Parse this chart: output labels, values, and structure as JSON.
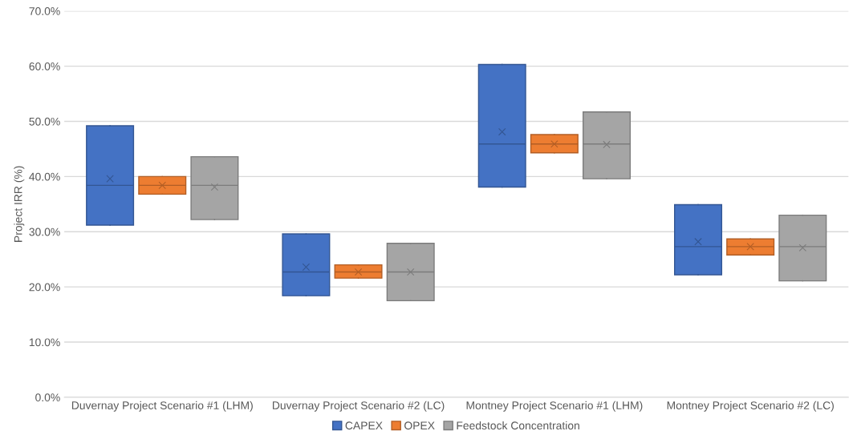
{
  "chart_data": {
    "type": "box",
    "ylabel": "Project IRR (%)",
    "categories": [
      "Duvernay Project Scenario #1 (LHM)",
      "Duvernay Project Scenario #2 (LC)",
      "Montney Project Scenario #1 (LHM)",
      "Montney Project Scenario #2 (LC)"
    ],
    "series": [
      {
        "name": "CAPEX",
        "color": "#4472c4",
        "boxes": [
          {
            "low": 31.2,
            "q1": 31.2,
            "median": 38.4,
            "q3": 49.2,
            "high": 49.2,
            "mean": 39.6
          },
          {
            "low": 18.4,
            "q1": 18.4,
            "median": 22.7,
            "q3": 29.6,
            "high": 29.6,
            "mean": 23.6
          },
          {
            "low": 38.1,
            "q1": 38.1,
            "median": 45.9,
            "q3": 60.3,
            "high": 60.3,
            "mean": 48.1
          },
          {
            "low": 22.2,
            "q1": 22.2,
            "median": 27.3,
            "q3": 34.9,
            "high": 34.9,
            "mean": 28.2
          }
        ]
      },
      {
        "name": "OPEX",
        "color": "#ed7d31",
        "boxes": [
          {
            "low": 36.8,
            "q1": 36.8,
            "median": 38.4,
            "q3": 40.0,
            "high": 40.0,
            "mean": 38.4
          },
          {
            "low": 21.6,
            "q1": 21.6,
            "median": 22.7,
            "q3": 24.0,
            "high": 24.0,
            "mean": 22.7
          },
          {
            "low": 44.3,
            "q1": 44.3,
            "median": 45.9,
            "q3": 47.6,
            "high": 47.6,
            "mean": 45.9
          },
          {
            "low": 25.8,
            "q1": 25.8,
            "median": 27.3,
            "q3": 28.7,
            "high": 28.7,
            "mean": 27.3
          }
        ]
      },
      {
        "name": "Feedstock Concentration",
        "color": "#a5a5a5",
        "boxes": [
          {
            "low": 32.2,
            "q1": 32.2,
            "median": 38.4,
            "q3": 43.6,
            "high": 43.6,
            "mean": 38.1
          },
          {
            "low": 17.5,
            "q1": 17.5,
            "median": 22.7,
            "q3": 27.9,
            "high": 27.9,
            "mean": 22.7
          },
          {
            "low": 39.6,
            "q1": 39.6,
            "median": 45.9,
            "q3": 51.7,
            "high": 51.7,
            "mean": 45.8
          },
          {
            "low": 21.1,
            "q1": 21.1,
            "median": 27.3,
            "q3": 33.0,
            "high": 33.0,
            "mean": 27.1
          }
        ]
      }
    ],
    "ylim": [
      0,
      70
    ],
    "yticks": [
      {
        "value": 0,
        "label": "0.0%"
      },
      {
        "value": 10,
        "label": "10.0%"
      },
      {
        "value": 20,
        "label": "20.0%"
      },
      {
        "value": 30,
        "label": "30.0%"
      },
      {
        "value": 40,
        "label": "40.0%"
      },
      {
        "value": 50,
        "label": "50.0%"
      },
      {
        "value": 60,
        "label": "60.0%"
      },
      {
        "value": 70,
        "label": "70.0%"
      }
    ],
    "grid": "y",
    "legend": "bottom"
  }
}
